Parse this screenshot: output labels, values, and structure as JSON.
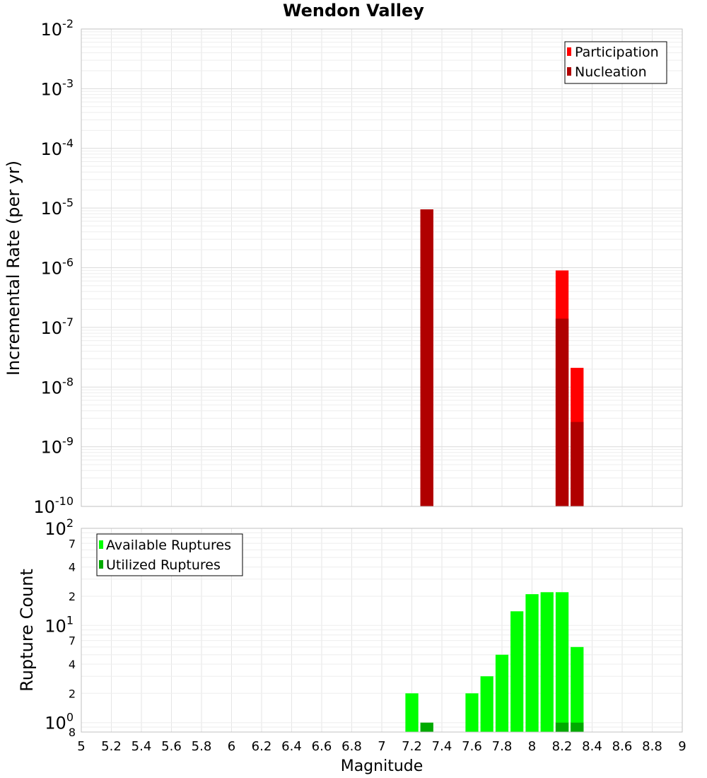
{
  "chart_data": [
    {
      "type": "bar",
      "title": "Wendon Valley",
      "xlabel": "",
      "ylabel": "Incremental Rate (per yr)",
      "yscale": "log",
      "ylim": [
        1e-10,
        0.01
      ],
      "xlim": [
        5,
        9
      ],
      "bin_width": 0.1,
      "grid": true,
      "legend_position": "top-right",
      "y_tick_labels": [
        {
          "base": "10",
          "exp": "-2"
        },
        {
          "base": "10",
          "exp": "-3"
        },
        {
          "base": "10",
          "exp": "-4"
        },
        {
          "base": "10",
          "exp": "-5"
        },
        {
          "base": "10",
          "exp": "-6"
        },
        {
          "base": "10",
          "exp": "-7"
        },
        {
          "base": "10",
          "exp": "-8"
        },
        {
          "base": "10",
          "exp": "-9"
        },
        {
          "base": "10",
          "exp": "-10"
        }
      ],
      "series": [
        {
          "name": "Participation",
          "color": "#ff0000",
          "x": [
            7.3,
            8.2,
            8.3
          ],
          "values": [
            9.5e-06,
            9e-07,
            2.1e-08
          ]
        },
        {
          "name": "Nucleation",
          "color": "#b00000",
          "x": [
            7.3,
            8.2,
            8.3
          ],
          "values": [
            9.5e-06,
            1.4e-07,
            2.6e-09
          ]
        }
      ]
    },
    {
      "type": "bar",
      "title": "",
      "xlabel": "Magnitude",
      "ylabel": "Rupture Count",
      "yscale": "log",
      "ylim": [
        0.8,
        100
      ],
      "xlim": [
        5,
        9
      ],
      "bin_width": 0.1,
      "grid": true,
      "legend_position": "top-left",
      "x_tick_labels": [
        "5",
        "5.2",
        "5.4",
        "5.6",
        "5.8",
        "6",
        "6.2",
        "6.4",
        "6.6",
        "6.8",
        "7",
        "7.2",
        "7.4",
        "7.6",
        "7.8",
        "8",
        "8.2",
        "8.4",
        "8.6",
        "8.8",
        "9"
      ],
      "y_tick_labels": [
        {
          "base": "10",
          "exp": "2"
        },
        {
          "base": "7",
          "exp": ""
        },
        {
          "base": "4",
          "exp": ""
        },
        {
          "base": "2",
          "exp": ""
        },
        {
          "base": "10",
          "exp": "1"
        },
        {
          "base": "7",
          "exp": ""
        },
        {
          "base": "4",
          "exp": ""
        },
        {
          "base": "2",
          "exp": ""
        },
        {
          "base": "10",
          "exp": "0"
        },
        {
          "base": "8",
          "exp": ""
        }
      ],
      "series": [
        {
          "name": "Available Ruptures",
          "color": "#00ff00",
          "x": [
            7.2,
            7.6,
            7.7,
            7.8,
            7.9,
            8.0,
            8.1,
            8.2,
            8.3
          ],
          "values": [
            2,
            2,
            3,
            5,
            14,
            21,
            22,
            22,
            6
          ]
        },
        {
          "name": "Utilized Ruptures",
          "color": "#00aa00",
          "x": [
            7.3,
            8.2,
            8.3
          ],
          "values": [
            1,
            1,
            1
          ]
        }
      ]
    }
  ]
}
